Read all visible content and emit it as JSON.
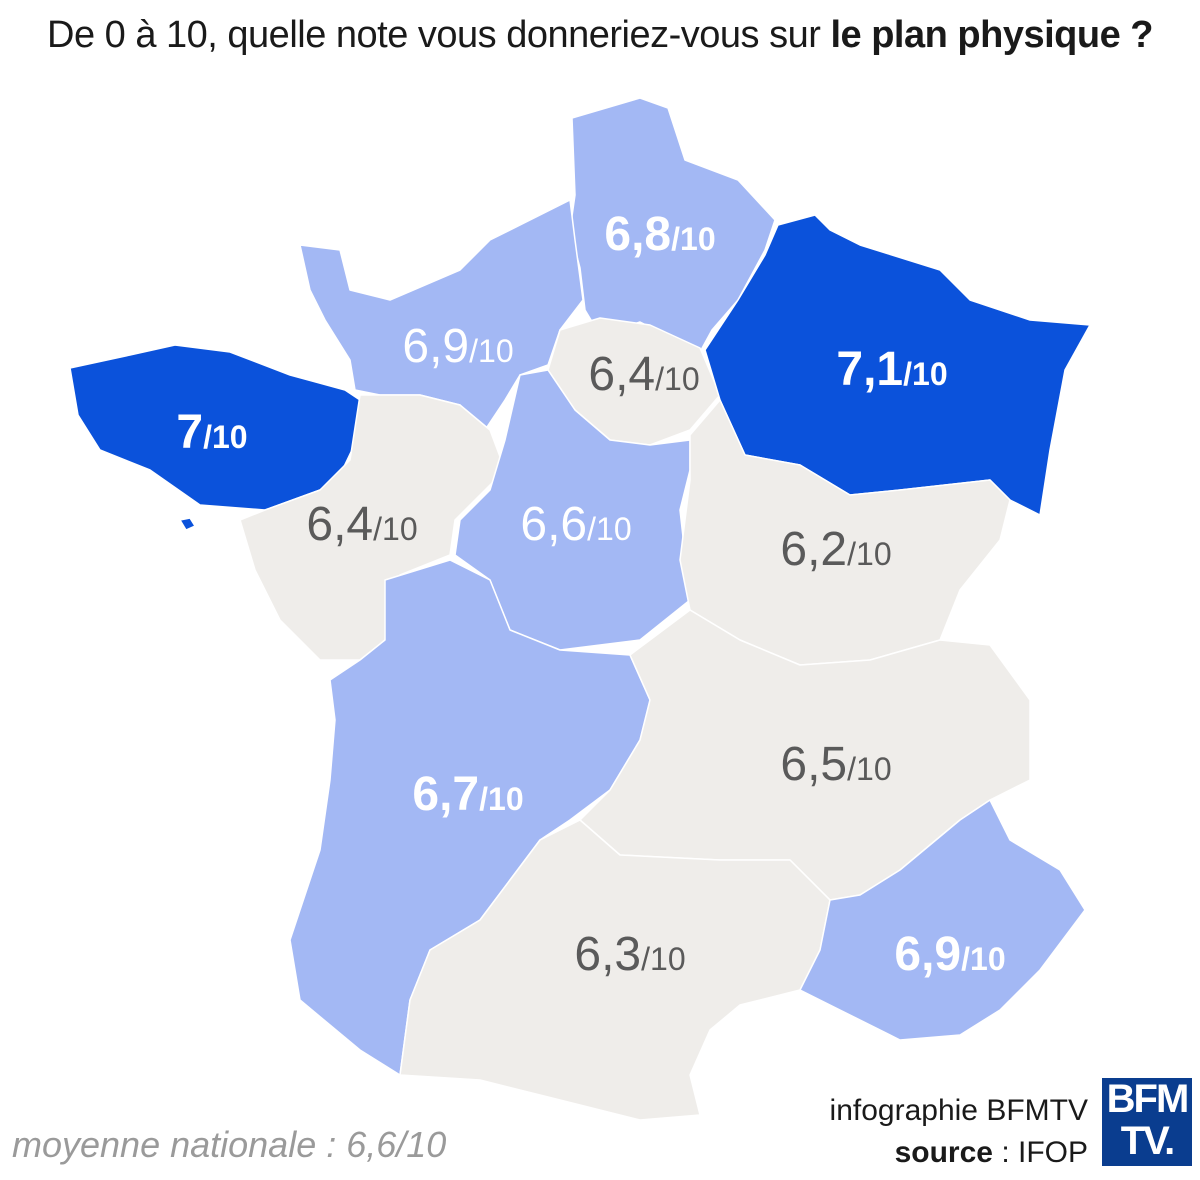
{
  "title": {
    "prefix": "De 0 à 10, quelle note vous donneriez-vous sur ",
    "bold": "le plan physique ?"
  },
  "colors": {
    "dark_blue": "#0b52db",
    "light_blue": "#a3b8f4",
    "grey": "#efedea"
  },
  "regions": [
    {
      "name": "Hauts-de-France",
      "score": "6,8",
      "suffix": "/10",
      "color": "light"
    },
    {
      "name": "Normandie",
      "score": "6,9",
      "suffix": "/10",
      "color": "light"
    },
    {
      "name": "Île-de-France",
      "score": "6,4",
      "suffix": "/10",
      "color": "grey"
    },
    {
      "name": "Grand Est",
      "score": "7,1",
      "suffix": "/10",
      "color": "dark"
    },
    {
      "name": "Bretagne",
      "score": "7",
      "suffix": "/10",
      "color": "dark"
    },
    {
      "name": "Pays de la Loire",
      "score": "6,4",
      "suffix": "/10",
      "color": "grey"
    },
    {
      "name": "Centre-Val de Loire",
      "score": "6,6",
      "suffix": "/10",
      "color": "light"
    },
    {
      "name": "Bourgogne-Franche-Comté",
      "score": "6,2",
      "suffix": "/10",
      "color": "grey"
    },
    {
      "name": "Nouvelle-Aquitaine",
      "score": "6,7",
      "suffix": "/10",
      "color": "light"
    },
    {
      "name": "Auvergne-Rhône-Alpes",
      "score": "6,5",
      "suffix": "/10",
      "color": "grey"
    },
    {
      "name": "Occitanie",
      "score": "6,3",
      "suffix": "/10",
      "color": "grey"
    },
    {
      "name": "Provence-Alpes-Côte d'Azur",
      "score": "6,9",
      "suffix": "/10",
      "color": "light"
    }
  ],
  "credit": {
    "line1": "infographie BFMTV",
    "source_label": "source",
    "source_value": " : IFOP"
  },
  "average": "moyenne nationale : 6,6/10",
  "logo": {
    "line1": "BFM",
    "line2": "TV."
  }
}
